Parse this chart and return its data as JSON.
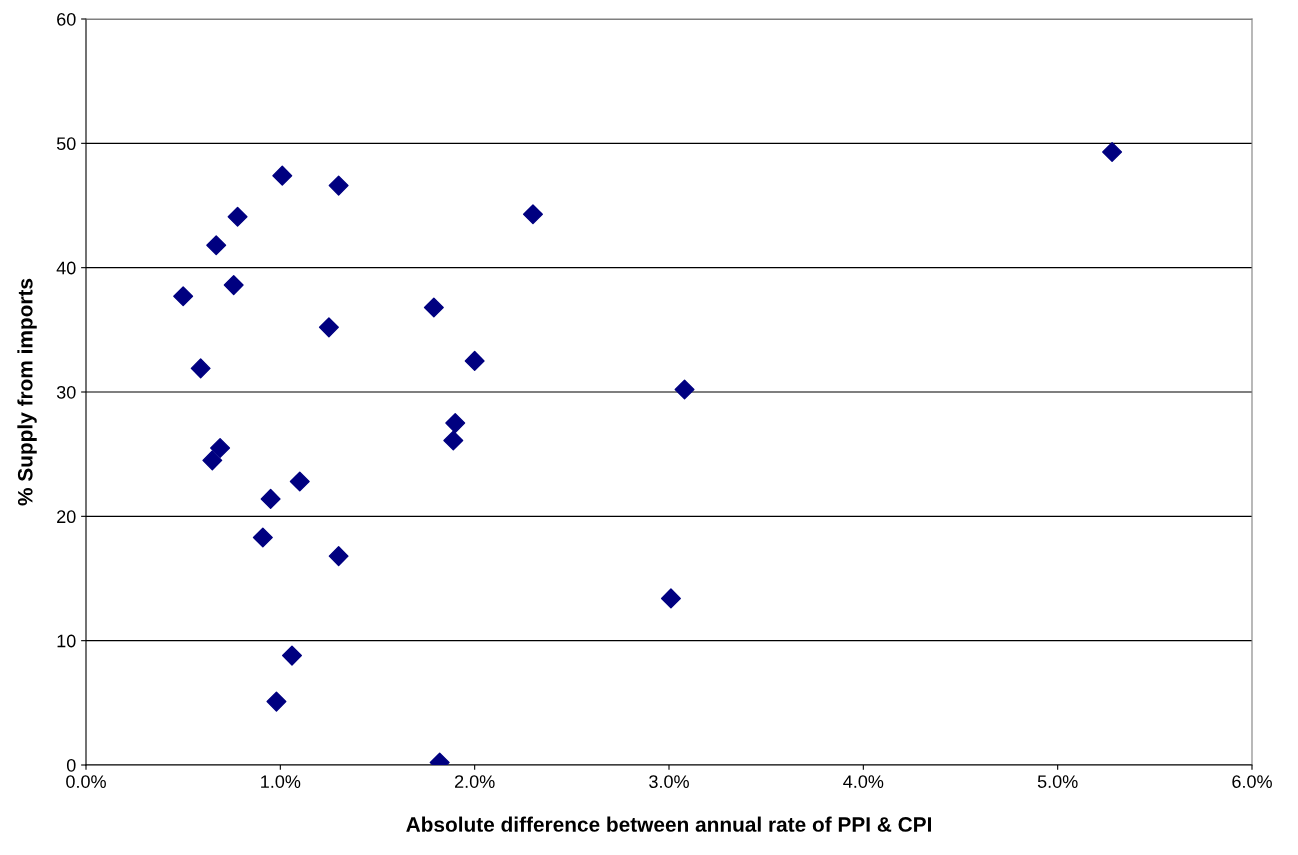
{
  "chart_data": {
    "type": "scatter",
    "xlabel": "Absolute difference between annual rate of PPI & CPI",
    "ylabel": "% Supply from imports",
    "x": [
      5.28,
      1.01,
      1.3,
      2.3,
      0.78,
      0.67,
      0.5,
      0.76,
      1.79,
      1.25,
      2.0,
      0.59,
      3.08,
      1.9,
      1.89,
      0.69,
      0.65,
      1.1,
      0.95,
      0.91,
      1.3,
      3.01,
      1.06,
      0.98,
      1.82
    ],
    "series": [
      {
        "color": "#000080",
        "values": [
          49.3,
          47.4,
          46.6,
          44.3,
          44.1,
          41.8,
          37.7,
          38.6,
          36.8,
          35.2,
          32.5,
          31.9,
          30.2,
          27.5,
          26.1,
          25.5,
          24.5,
          22.8,
          21.4,
          18.3,
          16.8,
          13.4,
          8.8,
          5.1,
          0.2
        ]
      }
    ],
    "xlim": [
      0,
      6
    ],
    "xticks": [
      {
        "value": 0,
        "label": "0.0%"
      },
      {
        "value": 1,
        "label": "1.0%"
      },
      {
        "value": 2,
        "label": "2.0%"
      },
      {
        "value": 3,
        "label": "3.0%"
      },
      {
        "value": 4,
        "label": "4.0%"
      },
      {
        "value": 5,
        "label": "5.0%"
      },
      {
        "value": 6,
        "label": "6.0%"
      }
    ],
    "ylim": [
      0,
      60
    ],
    "yticks": [
      0,
      10,
      20,
      30,
      40,
      50,
      60
    ],
    "grid": "y",
    "marker": "diamond"
  }
}
